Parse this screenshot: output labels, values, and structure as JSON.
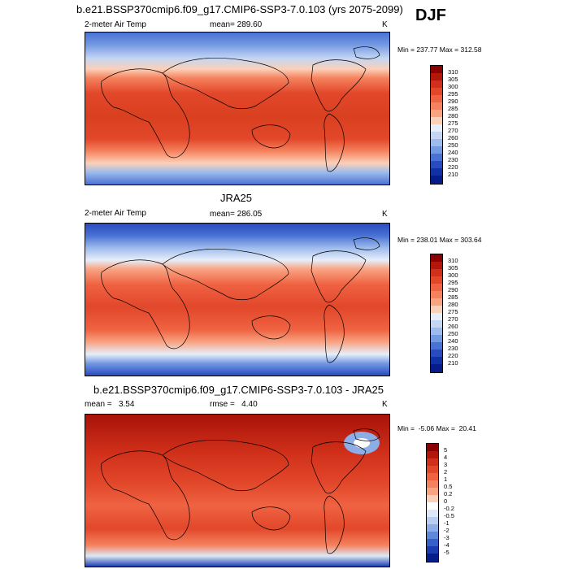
{
  "djf_label": "DJF",
  "panels": [
    {
      "title": "b.e21.BSSP370cmip6.f09_g17.CMIP6-SSP3-7.0.103 (yrs 2075-2099)",
      "left_label": "2-meter Air Temp",
      "mid_label": "mean= 289.60",
      "right_label": "K",
      "minmax": "Min = 237.77 Max = 312.58"
    },
    {
      "title": "JRA25",
      "left_label": "2-meter Air Temp",
      "mid_label": "mean= 286.05",
      "right_label": "K",
      "minmax": "Min = 238.01 Max = 303.64"
    },
    {
      "title": "b.e21.BSSP370cmip6.f09_g17.CMIP6-SSP3-7.0.103 - JRA25",
      "left_label": "mean =   3.54",
      "mid_label": "rmse =   4.40",
      "right_label": "K",
      "minmax": "Min =  -5.06 Max =  20.41"
    }
  ],
  "chart_data": [
    {
      "type": "heatmap",
      "title": "b.e21.BSSP370cmip6.f09_g17.CMIP6-SSP3-7.0.103 (yrs 2075-2099)",
      "variable": "2-meter Air Temp",
      "units": "K",
      "mean": 289.6,
      "min": 237.77,
      "max": 312.58,
      "colorbar_levels": [
        "310",
        "305",
        "300",
        "295",
        "290",
        "285",
        "280",
        "275",
        "270",
        "260",
        "250",
        "240",
        "230",
        "220",
        "210"
      ],
      "colorbar_colors": [
        "#8b0000",
        "#b3160b",
        "#d0301a",
        "#e2472a",
        "#ef6342",
        "#f5825e",
        "#f8a483",
        "#fbd0b9",
        "#e6eefa",
        "#c4d6f3",
        "#9dbbec",
        "#7399e2",
        "#4a72d4",
        "#2a4bc0",
        "#1230a6",
        "#061c8a"
      ]
    },
    {
      "type": "heatmap",
      "title": "JRA25",
      "variable": "2-meter Air Temp",
      "units": "K",
      "mean": 286.05,
      "min": 238.01,
      "max": 303.64,
      "colorbar_levels": [
        "310",
        "305",
        "300",
        "295",
        "290",
        "285",
        "280",
        "275",
        "270",
        "260",
        "250",
        "240",
        "230",
        "220",
        "210"
      ],
      "colorbar_colors": [
        "#8b0000",
        "#b3160b",
        "#d0301a",
        "#e2472a",
        "#ef6342",
        "#f5825e",
        "#f8a483",
        "#fbd0b9",
        "#e6eefa",
        "#c4d6f3",
        "#9dbbec",
        "#7399e2",
        "#4a72d4",
        "#2a4bc0",
        "#1230a6",
        "#061c8a"
      ]
    },
    {
      "type": "heatmap",
      "title": "b.e21.BSSP370cmip6.f09_g17.CMIP6-SSP3-7.0.103 - JRA25",
      "units": "K",
      "mean": 3.54,
      "rmse": 4.4,
      "min": -5.06,
      "max": 20.41,
      "colorbar_levels": [
        "5",
        "4",
        "3",
        "2",
        "1",
        "0.5",
        "0.2",
        "0",
        "-0.2",
        "-0.5",
        "-1",
        "-2",
        "-3",
        "-4",
        "-5"
      ],
      "colorbar_colors": [
        "#8b0000",
        "#b3160b",
        "#d0301a",
        "#e2472a",
        "#ef6342",
        "#f5825e",
        "#f8a483",
        "#fbd0b9",
        "#ffffff",
        "#dce8f7",
        "#b8cdf0",
        "#8cade6",
        "#5f88da",
        "#3660c8",
        "#1a3cb0",
        "#061c8a"
      ]
    }
  ]
}
